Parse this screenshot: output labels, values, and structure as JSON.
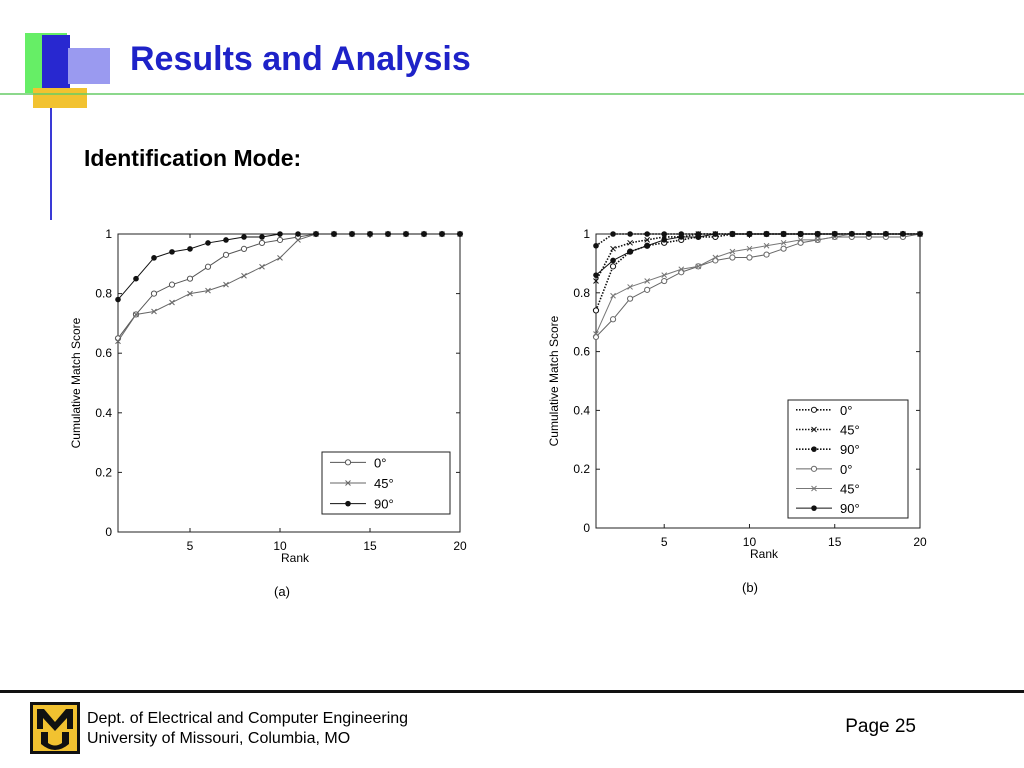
{
  "slide": {
    "title": "Results and Analysis",
    "subtitle": "Identification Mode:"
  },
  "footer": {
    "line1": "Dept. of Electrical and Computer Engineering",
    "line2": "University of Missouri, Columbia, MO",
    "page": "Page 25",
    "logo_icon": "mu-logo-icon"
  },
  "colors": {
    "title": "#1e22c8",
    "accent_blue": "#3a3ad6",
    "accent_green": "#66ee66",
    "accent_gold": "#f2c230"
  },
  "chart_data": [
    {
      "type": "line",
      "caption": "(a)",
      "xlabel": "Rank",
      "ylabel": "Cumulative Match Score",
      "xlim": [
        1,
        20
      ],
      "ylim": [
        0,
        1
      ],
      "xticks": [
        5,
        10,
        15,
        20
      ],
      "yticks": [
        0,
        0.2,
        0.4,
        0.6,
        0.8,
        1
      ],
      "grid": false,
      "legend_position": "bottom-right",
      "x": [
        1,
        2,
        3,
        4,
        5,
        6,
        7,
        8,
        9,
        10,
        11,
        12,
        13,
        14,
        15,
        16,
        17,
        18,
        19,
        20
      ],
      "series": [
        {
          "name": "0°",
          "marker": "circle-open",
          "line": "solid",
          "color": "#555555",
          "values": [
            0.65,
            0.73,
            0.8,
            0.83,
            0.85,
            0.89,
            0.93,
            0.95,
            0.97,
            0.98,
            0.99,
            1,
            1,
            1,
            1,
            1,
            1,
            1,
            1,
            1
          ]
        },
        {
          "name": "45°",
          "marker": "x",
          "line": "solid",
          "color": "#666666",
          "values": [
            0.64,
            0.73,
            0.74,
            0.77,
            0.8,
            0.81,
            0.83,
            0.86,
            0.89,
            0.92,
            0.98,
            1,
            1,
            1,
            1,
            1,
            1,
            1,
            1,
            1
          ]
        },
        {
          "name": "90°",
          "marker": "dot",
          "line": "solid",
          "color": "#111111",
          "values": [
            0.78,
            0.85,
            0.92,
            0.94,
            0.95,
            0.97,
            0.98,
            0.99,
            0.99,
            1,
            1,
            1,
            1,
            1,
            1,
            1,
            1,
            1,
            1,
            1
          ]
        }
      ]
    },
    {
      "type": "line",
      "caption": "(b)",
      "xlabel": "Rank",
      "ylabel": "Cumulative Match Score",
      "xlim": [
        1,
        20
      ],
      "ylim": [
        0,
        1
      ],
      "xticks": [
        5,
        10,
        15,
        20
      ],
      "yticks": [
        0,
        0.2,
        0.4,
        0.6,
        0.8,
        1
      ],
      "grid": false,
      "legend_position": "bottom-right",
      "x": [
        1,
        2,
        3,
        4,
        5,
        6,
        7,
        8,
        9,
        10,
        11,
        12,
        13,
        14,
        15,
        16,
        17,
        18,
        19,
        20
      ],
      "series": [
        {
          "name": "0°",
          "marker": "circle-open",
          "line": "dotted",
          "color": "#111111",
          "values": [
            0.74,
            0.89,
            0.94,
            0.96,
            0.97,
            0.98,
            0.99,
            0.99,
            1,
            1,
            1,
            1,
            1,
            1,
            1,
            1,
            1,
            1,
            1,
            1
          ]
        },
        {
          "name": "45°",
          "marker": "x",
          "line": "dotted",
          "color": "#111111",
          "values": [
            0.84,
            0.95,
            0.97,
            0.98,
            0.99,
            0.99,
            1,
            1,
            1,
            1,
            1,
            1,
            1,
            1,
            1,
            1,
            1,
            1,
            1,
            1
          ]
        },
        {
          "name": "90°",
          "marker": "dot",
          "line": "dotted",
          "color": "#111111",
          "values": [
            0.96,
            1,
            1,
            1,
            1,
            1,
            1,
            1,
            1,
            1,
            1,
            1,
            1,
            1,
            1,
            1,
            1,
            1,
            1,
            1
          ]
        },
        {
          "name": "0°",
          "marker": "circle-open",
          "line": "solid",
          "color": "#666666",
          "values": [
            0.65,
            0.71,
            0.78,
            0.81,
            0.84,
            0.87,
            0.89,
            0.91,
            0.92,
            0.92,
            0.93,
            0.95,
            0.97,
            0.98,
            0.99,
            0.99,
            0.99,
            0.99,
            0.99,
            1
          ]
        },
        {
          "name": "45°",
          "marker": "x",
          "line": "solid",
          "color": "#777777",
          "values": [
            0.66,
            0.79,
            0.82,
            0.84,
            0.86,
            0.88,
            0.89,
            0.92,
            0.94,
            0.95,
            0.96,
            0.97,
            0.98,
            0.98,
            0.99,
            1,
            1,
            1,
            1,
            1
          ]
        },
        {
          "name": "90°",
          "marker": "dot",
          "line": "solid",
          "color": "#111111",
          "values": [
            0.86,
            0.91,
            0.94,
            0.96,
            0.98,
            0.99,
            0.99,
            1,
            1,
            1,
            1,
            1,
            1,
            1,
            1,
            1,
            1,
            1,
            1,
            1
          ]
        }
      ]
    }
  ]
}
